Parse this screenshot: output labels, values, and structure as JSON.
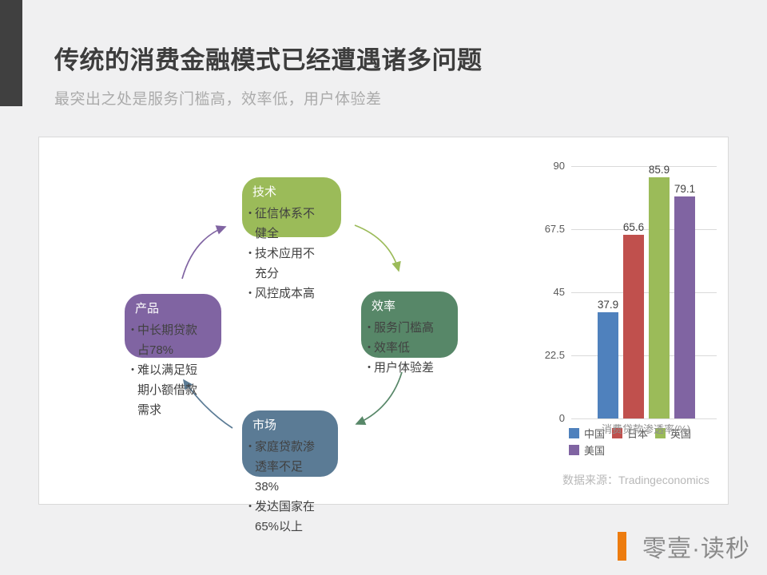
{
  "slide": {
    "title": "传统的消费金融模式已经遭遇诸多问题",
    "subtitle": "最突出之处是服务门槛高，效率低，用户体验差",
    "source_note": "数据来源：Tradingeconomics"
  },
  "cycle": {
    "nodes": [
      {
        "title": "技术",
        "color": "#9bbb59",
        "bullets": [
          "征信体系不健全",
          "技术应用不充分",
          "风控成本高"
        ]
      },
      {
        "title": "效率",
        "color": "#578768",
        "bullets": [
          "服务门槛高",
          "效率低",
          "用户体验差"
        ]
      },
      {
        "title": "市场",
        "color": "#5b7b95",
        "bullets": [
          "家庭贷款渗透率不足38%",
          "发达国家在65%以上"
        ]
      },
      {
        "title": "产品",
        "color": "#8064a2",
        "bullets": [
          "中长期贷款占78%",
          "难以满足短期小额借款需求"
        ]
      }
    ]
  },
  "chart_data": {
    "type": "bar",
    "title": "",
    "xlabel": "消费贷款渗透率(%)",
    "ylabel": "",
    "categories": [
      "中国",
      "日本",
      "英国",
      "美国"
    ],
    "values": [
      37.9,
      65.6,
      85.9,
      79.1
    ],
    "colors": [
      "#4f81bd",
      "#c0504d",
      "#9bbb59",
      "#8064a2"
    ],
    "yticks": [
      0,
      22.5,
      45,
      67.5,
      90
    ],
    "ylim": [
      0,
      90
    ],
    "grid": true,
    "legend_position": "bottom",
    "bullet_char": "•"
  },
  "footer": {
    "brand": "零壹·读秒",
    "accent_color": "#ed7c0f"
  }
}
